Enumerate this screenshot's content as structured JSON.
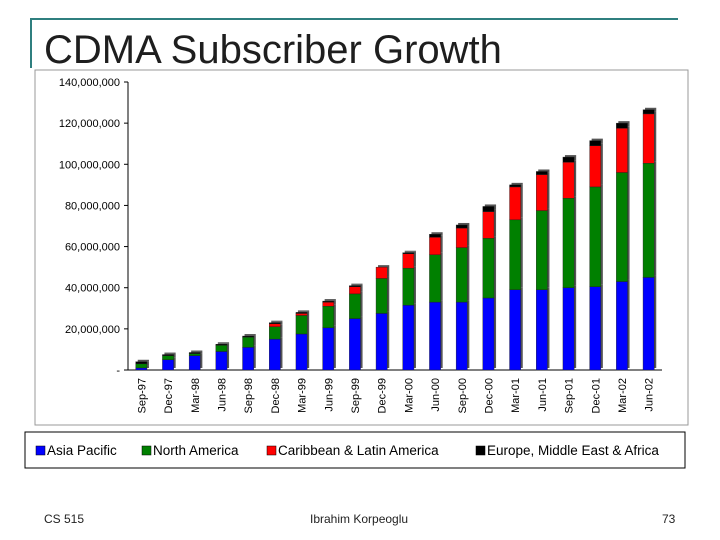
{
  "slide": {
    "title": "CDMA Subscriber Growth",
    "footer_left": "CS 515",
    "footer_center": "Ibrahim Korpeoglu",
    "page_number": "73"
  },
  "chart_data": {
    "type": "bar",
    "stacked": true,
    "title": "",
    "xlabel": "",
    "ylabel": "",
    "ylim": [
      0,
      140000000
    ],
    "y_ticks": [
      "140,000,000",
      "120,000,000",
      "100,000,000",
      "80,000,000",
      "60,000,000",
      "40,000,000",
      "20,000,000",
      "-"
    ],
    "grid": false,
    "legend_position": "bottom",
    "categories": [
      "Sep-97",
      "Dec-97",
      "Mar-98",
      "Jun-98",
      "Sep-98",
      "Dec-98",
      "Mar-99",
      "Jun-99",
      "Sep-99",
      "Dec-99",
      "Mar-00",
      "Jun-00",
      "Sep-00",
      "Dec-00",
      "Mar-01",
      "Jun-01",
      "Sep-01",
      "Dec-01",
      "Mar-02",
      "Jun-02"
    ],
    "series": [
      {
        "name": "Asia Pacific",
        "color": "#0000ff",
        "values": [
          1000000,
          5000000,
          7000000,
          9000000,
          11000000,
          15000000,
          17500000,
          20500000,
          25000000,
          27500000,
          31500000,
          33000000,
          33000000,
          35000000,
          39000000,
          39000000,
          40000000,
          40500000,
          43000000,
          45000000
        ]
      },
      {
        "name": "North America",
        "color": "#008000",
        "values": [
          2000000,
          2000000,
          1000000,
          3000000,
          5000000,
          6000000,
          9000000,
          10500000,
          12000000,
          17000000,
          18000000,
          23000000,
          26500000,
          29000000,
          34000000,
          38500000,
          43500000,
          48500000,
          53000000,
          55500000
        ]
      },
      {
        "name": "Caribbean & Latin America",
        "color": "#ff0000",
        "values": [
          0,
          0,
          0,
          0,
          0,
          1500000,
          1000000,
          2000000,
          3500000,
          5500000,
          7000000,
          8500000,
          9500000,
          13000000,
          16000000,
          17500000,
          17500000,
          20000000,
          21500000,
          24000000
        ]
      },
      {
        "name": "Europe, Middle East & Africa",
        "color": "#000000",
        "values": [
          1000000,
          500000,
          500000,
          500000,
          500000,
          500000,
          500000,
          500000,
          500000,
          0,
          500000,
          1500000,
          1500000,
          2500000,
          1000000,
          1500000,
          2500000,
          2500000,
          2500000,
          2000000
        ]
      }
    ]
  }
}
